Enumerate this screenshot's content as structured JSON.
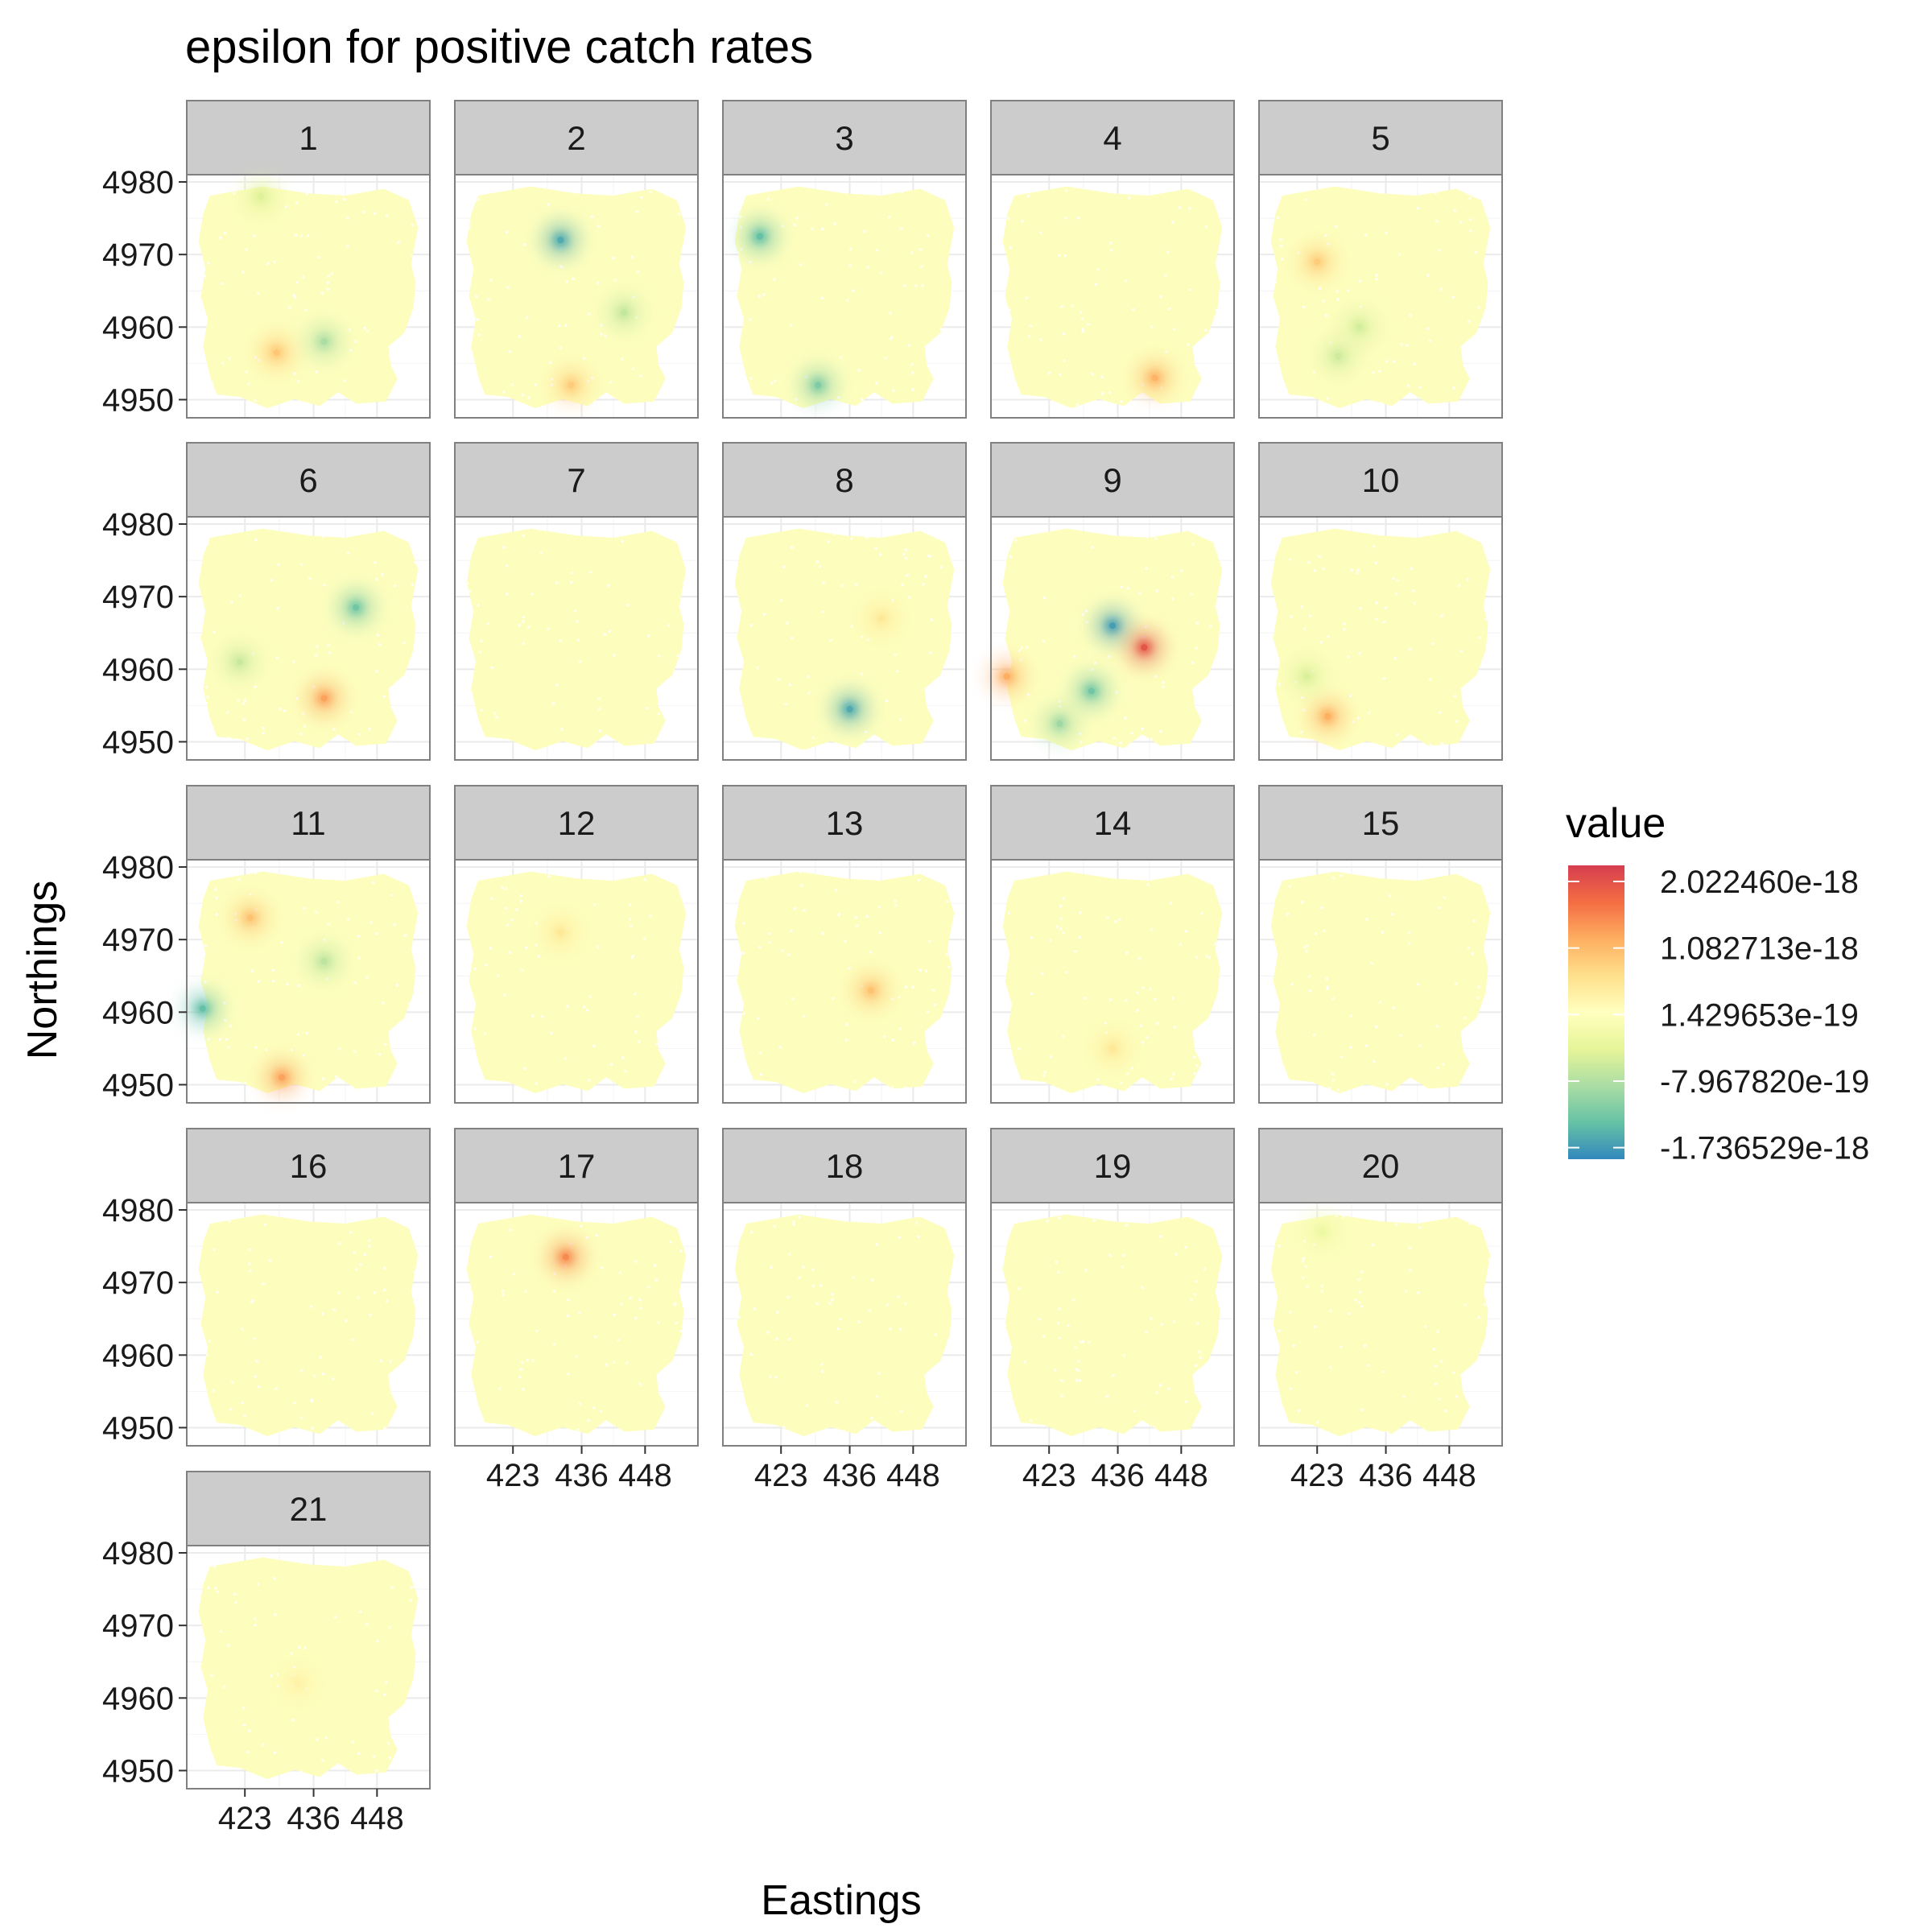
{
  "chart_data": {
    "type": "heatmap",
    "title": "epsilon for positive catch rates",
    "xlabel": "Eastings",
    "ylabel": "Northings",
    "facets": [
      "1",
      "2",
      "3",
      "4",
      "5",
      "6",
      "7",
      "8",
      "9",
      "10",
      "11",
      "12",
      "13",
      "14",
      "15",
      "16",
      "17",
      "18",
      "19",
      "20",
      "21"
    ],
    "facet_columns": 5,
    "xlim": [
      412,
      458
    ],
    "ylim": [
      4947.5,
      4981
    ],
    "x_ticks": [
      423,
      436,
      448
    ],
    "x_tick_labels": [
      "423",
      "436",
      "448"
    ],
    "y_ticks": [
      4950,
      4960,
      4970,
      4980
    ],
    "y_tick_labels": [
      "4950",
      "4960",
      "4970",
      "4980"
    ],
    "legend": {
      "title": "value",
      "position": "right",
      "colors": [
        "#d53e4f",
        "#f46d43",
        "#fdae61",
        "#fee08b",
        "#ffffbf",
        "#e6f598",
        "#abdda4",
        "#66c2a5",
        "#3288bd"
      ],
      "breaks": [
        2.02246e-18,
        1.082713e-18,
        1.429653e-19,
        -7.96782e-19,
        -1.736529e-18
      ],
      "labels": [
        "2.022460e-18",
        "1.082713e-18",
        "1.429653e-19",
        "-7.967820e-19",
        "-1.736529e-18"
      ],
      "min": -1.9e-18,
      "max": 2.25e-18
    },
    "background_value": 1.429653e-19,
    "hotspots": [
      {
        "facet": "1",
        "x": 426,
        "y": 4978,
        "value": -4e-19
      },
      {
        "facet": "1",
        "x": 429,
        "y": 4956.5,
        "value": 9.5e-19
      },
      {
        "facet": "1",
        "x": 438,
        "y": 4958,
        "value": -8.5e-19
      },
      {
        "facet": "2",
        "x": 432,
        "y": 4972,
        "value": -1.6e-18
      },
      {
        "facet": "2",
        "x": 444,
        "y": 4962,
        "value": -6.5e-19
      },
      {
        "facet": "2",
        "x": 434,
        "y": 4952,
        "value": 9e-19
      },
      {
        "facet": "3",
        "x": 419,
        "y": 4972.5,
        "value": -1.4e-18
      },
      {
        "facet": "3",
        "x": 430,
        "y": 4952,
        "value": -1.2e-18
      },
      {
        "facet": "4",
        "x": 443,
        "y": 4953,
        "value": 1.15e-18
      },
      {
        "facet": "5",
        "x": 423,
        "y": 4969,
        "value": 9e-19
      },
      {
        "facet": "5",
        "x": 427,
        "y": 4956,
        "value": -5.5e-19
      },
      {
        "facet": "5",
        "x": 431,
        "y": 4960,
        "value": -5e-19
      },
      {
        "facet": "6",
        "x": 444,
        "y": 4968.5,
        "value": -1.3e-18
      },
      {
        "facet": "6",
        "x": 438,
        "y": 4956,
        "value": 1.3e-18
      },
      {
        "facet": "6",
        "x": 422,
        "y": 4961,
        "value": -6e-19
      },
      {
        "facet": "8",
        "x": 436,
        "y": 4954.5,
        "value": -1.6e-18
      },
      {
        "facet": "8",
        "x": 442,
        "y": 4967,
        "value": 5.5e-19
      },
      {
        "facet": "9",
        "x": 435,
        "y": 4966,
        "value": -1.7e-18
      },
      {
        "facet": "9",
        "x": 441,
        "y": 4963,
        "value": 2e-18
      },
      {
        "facet": "9",
        "x": 431,
        "y": 4957,
        "value": -1.3e-18
      },
      {
        "facet": "9",
        "x": 425,
        "y": 4952.5,
        "value": -9.5e-19
      },
      {
        "facet": "9",
        "x": 415,
        "y": 4959,
        "value": 1.2e-18
      },
      {
        "facet": "10",
        "x": 425,
        "y": 4953.5,
        "value": 1.2e-18
      },
      {
        "facet": "10",
        "x": 421,
        "y": 4959,
        "value": -4.5e-19
      },
      {
        "facet": "11",
        "x": 415,
        "y": 4960.5,
        "value": -1.4e-18
      },
      {
        "facet": "11",
        "x": 424,
        "y": 4973,
        "value": 1e-18
      },
      {
        "facet": "11",
        "x": 430,
        "y": 4951,
        "value": 1.3e-18
      },
      {
        "facet": "11",
        "x": 438,
        "y": 4967,
        "value": -7e-19
      },
      {
        "facet": "12",
        "x": 432,
        "y": 4971,
        "value": 5.5e-19
      },
      {
        "facet": "13",
        "x": 440,
        "y": 4963,
        "value": 1e-18
      },
      {
        "facet": "14",
        "x": 435,
        "y": 4955,
        "value": 5.5e-19
      },
      {
        "facet": "17",
        "x": 433,
        "y": 4973.5,
        "value": 1.5e-18
      },
      {
        "facet": "20",
        "x": 424,
        "y": 4977,
        "value": -2e-19
      },
      {
        "facet": "21",
        "x": 433,
        "y": 4962,
        "value": 4e-19
      }
    ]
  }
}
